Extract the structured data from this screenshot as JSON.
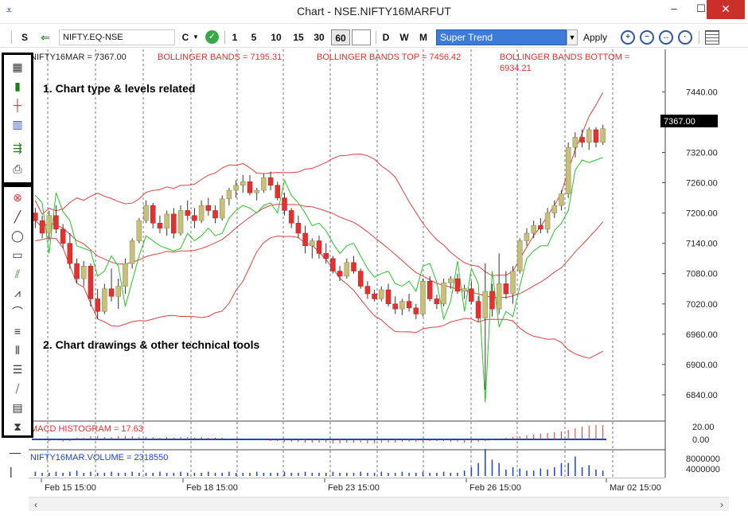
{
  "window": {
    "title": "Chart - NSE.NIFTY16MARFUT",
    "controls": {
      "minimize": "–",
      "maximize": "☐",
      "close": "✕"
    }
  },
  "toolbar": {
    "s_label": "S",
    "symbol": "NIFTY.EQ-NSE",
    "chart_mode": "C",
    "periods": [
      "1",
      "5",
      "10",
      "15",
      "30",
      "60"
    ],
    "selected_period": "60",
    "timeframes": [
      "D",
      "W",
      "M"
    ],
    "indicator": "Super Trend",
    "apply_label": "Apply"
  },
  "annotations": {
    "box1": "1. Chart type & levels related",
    "box2": "2. Chart drawings & other technical tools"
  },
  "legend": {
    "price": "NIFTY16MAR = 7367.00",
    "bb": "BOLLINGER BANDS = 7195.31",
    "bb_top": "BOLLINGER BANDS TOP = 7456.42",
    "bb_bottom_1": "BOLLINGER BANDS BOTTOM =",
    "bb_bottom_2": "6934.21",
    "macd": "MACD HISTOGRAM = 17.63",
    "volume": "NIFTY16MAR.VOLUME = 2318550"
  },
  "last_price": "7367.00",
  "price_ticks": [
    "7440.00",
    "7380.00",
    "7320.00",
    "7260.00",
    "7200.00",
    "7140.00",
    "7080.00",
    "7020.00",
    "6960.00",
    "6900.00",
    "6840.00"
  ],
  "macd_ticks": [
    "20.00",
    "0.00"
  ],
  "volume_ticks": [
    "8000000",
    "4000000"
  ],
  "x_ticks": [
    "Feb 15 15:00",
    "Feb 18 15:00",
    "Feb 23 15:00",
    "Feb 26 15:00",
    "Mar 02 15:00"
  ],
  "colors": {
    "up": "#c6c07a",
    "down": "#e53030",
    "bands": "#e04040",
    "supertrend": "#27c427",
    "macd": "#e03030",
    "volume": "#1e3fd0",
    "accent": "#3d7bd8"
  },
  "chart_data": {
    "type": "candlestick",
    "ylim": [
      6810,
      7480
    ],
    "candles": [
      [
        7200,
        7210,
        7170,
        7185
      ],
      [
        7185,
        7195,
        7150,
        7160
      ],
      [
        7160,
        7205,
        7145,
        7195
      ],
      [
        7195,
        7215,
        7160,
        7168
      ],
      [
        7168,
        7178,
        7130,
        7140
      ],
      [
        7140,
        7160,
        7090,
        7100
      ],
      [
        7100,
        7110,
        7060,
        7070
      ],
      [
        7070,
        7105,
        7055,
        7095
      ],
      [
        7095,
        7100,
        7015,
        7030
      ],
      [
        7030,
        7050,
        6990,
        7005
      ],
      [
        7005,
        7060,
        7000,
        7050
      ],
      [
        7050,
        7090,
        7025,
        7035
      ],
      [
        7035,
        7070,
        7010,
        7055
      ],
      [
        7055,
        7110,
        7040,
        7100
      ],
      [
        7100,
        7150,
        7090,
        7145
      ],
      [
        7145,
        7190,
        7140,
        7185
      ],
      [
        7185,
        7225,
        7180,
        7215
      ],
      [
        7215,
        7220,
        7170,
        7180
      ],
      [
        7180,
        7195,
        7160,
        7170
      ],
      [
        7170,
        7205,
        7155,
        7198
      ],
      [
        7198,
        7210,
        7150,
        7160
      ],
      [
        7160,
        7215,
        7155,
        7205
      ],
      [
        7205,
        7225,
        7185,
        7195
      ],
      [
        7195,
        7210,
        7170,
        7185
      ],
      [
        7185,
        7225,
        7180,
        7215
      ],
      [
        7215,
        7230,
        7195,
        7205
      ],
      [
        7205,
        7215,
        7180,
        7190
      ],
      [
        7190,
        7235,
        7185,
        7228
      ],
      [
        7228,
        7250,
        7215,
        7245
      ],
      [
        7245,
        7265,
        7230,
        7255
      ],
      [
        7255,
        7275,
        7240,
        7262
      ],
      [
        7262,
        7275,
        7235,
        7240
      ],
      [
        7240,
        7250,
        7225,
        7245
      ],
      [
        7245,
        7278,
        7240,
        7270
      ],
      [
        7270,
        7282,
        7245,
        7255
      ],
      [
        7255,
        7262,
        7225,
        7230
      ],
      [
        7230,
        7240,
        7195,
        7205
      ],
      [
        7205,
        7210,
        7170,
        7180
      ],
      [
        7180,
        7195,
        7150,
        7160
      ],
      [
        7160,
        7175,
        7120,
        7135
      ],
      [
        7135,
        7150,
        7110,
        7145
      ],
      [
        7145,
        7155,
        7110,
        7120
      ],
      [
        7120,
        7140,
        7100,
        7110
      ],
      [
        7110,
        7115,
        7080,
        7085
      ],
      [
        7085,
        7095,
        7065,
        7075
      ],
      [
        7075,
        7110,
        7070,
        7102
      ],
      [
        7102,
        7115,
        7080,
        7085
      ],
      [
        7085,
        7090,
        7050,
        7055
      ],
      [
        7055,
        7065,
        7030,
        7040
      ],
      [
        7040,
        7048,
        7025,
        7030
      ],
      [
        7030,
        7055,
        7025,
        7048
      ],
      [
        7048,
        7060,
        7015,
        7020
      ],
      [
        7020,
        7035,
        7000,
        7010
      ],
      [
        7010,
        7030,
        6998,
        7025
      ],
      [
        7025,
        7040,
        7005,
        7012
      ],
      [
        7012,
        7020,
        6990,
        7000
      ],
      [
        7000,
        7070,
        6995,
        7065
      ],
      [
        7065,
        7075,
        7025,
        7030
      ],
      [
        7030,
        7038,
        7010,
        7020
      ],
      [
        7020,
        7070,
        7015,
        7062
      ],
      [
        7062,
        7075,
        7050,
        7070
      ],
      [
        7070,
        7080,
        7040,
        7045
      ],
      [
        7045,
        7058,
        7030,
        7050
      ],
      [
        7050,
        7065,
        7020,
        7025
      ],
      [
        7025,
        7035,
        6985,
        6992
      ],
      [
        6992,
        7100,
        6850,
        7045
      ],
      [
        7045,
        7060,
        6995,
        7010
      ],
      [
        7010,
        7120,
        7000,
        7060
      ],
      [
        7060,
        7085,
        7030,
        7040
      ],
      [
        7040,
        7095,
        7020,
        7085
      ],
      [
        7085,
        7150,
        7080,
        7145
      ],
      [
        7145,
        7170,
        7135,
        7160
      ],
      [
        7160,
        7185,
        7150,
        7175
      ],
      [
        7175,
        7190,
        7160,
        7168
      ],
      [
        7168,
        7210,
        7160,
        7200
      ],
      [
        7200,
        7225,
        7190,
        7215
      ],
      [
        7215,
        7245,
        7205,
        7238
      ],
      [
        7238,
        7340,
        7230,
        7330
      ],
      [
        7330,
        7360,
        7310,
        7350
      ],
      [
        7350,
        7365,
        7330,
        7340
      ],
      [
        7340,
        7370,
        7325,
        7365
      ],
      [
        7365,
        7370,
        7330,
        7340
      ],
      [
        7340,
        7375,
        7335,
        7367
      ]
    ],
    "macd_hist": [
      -1,
      -1,
      -2,
      -1,
      -3,
      -2,
      2,
      2,
      4,
      4,
      3,
      3,
      4,
      4,
      4,
      3,
      3,
      3,
      2,
      3,
      2,
      3,
      3,
      2,
      3,
      2,
      2,
      2,
      1,
      1,
      0,
      0,
      -1,
      -1,
      -2,
      -2,
      -3,
      -3,
      -3,
      -4,
      -4,
      -4,
      -4,
      -5,
      -5,
      -4,
      -4,
      -4,
      -5,
      -5,
      -4,
      -4,
      -4,
      -3,
      -3,
      -3,
      -3,
      -2,
      -2,
      -2,
      -3,
      -3,
      -4,
      -3,
      -3,
      -2,
      -1,
      1,
      2,
      3,
      4,
      5,
      6,
      7,
      8,
      9,
      10,
      12,
      14,
      16,
      17,
      18,
      18
    ],
    "volume": [
      0.04,
      0.03,
      0.03,
      0.04,
      0.03,
      0.04,
      0.05,
      0.03,
      0.04,
      0.03,
      0.03,
      0.04,
      0.03,
      0.03,
      0.04,
      0.03,
      0.03,
      0.03,
      0.04,
      0.03,
      0.03,
      0.04,
      0.03,
      0.03,
      0.03,
      0.04,
      0.03,
      0.03,
      0.04,
      0.03,
      0.03,
      0.03,
      0.04,
      0.03,
      0.03,
      0.03,
      0.04,
      0.03,
      0.03,
      0.04,
      0.03,
      0.03,
      0.03,
      0.04,
      0.03,
      0.03,
      0.03,
      0.04,
      0.03,
      0.03,
      0.04,
      0.03,
      0.03,
      0.04,
      0.03,
      0.03,
      0.04,
      0.03,
      0.03,
      0.04,
      0.03,
      0.03,
      0.05,
      0.08,
      0.12,
      0.25,
      0.15,
      0.12,
      0.06,
      0.08,
      0.07,
      0.05,
      0.05,
      0.07,
      0.06,
      0.08,
      0.12,
      0.12,
      0.18,
      0.08,
      0.1,
      0.06,
      0.05
    ]
  }
}
